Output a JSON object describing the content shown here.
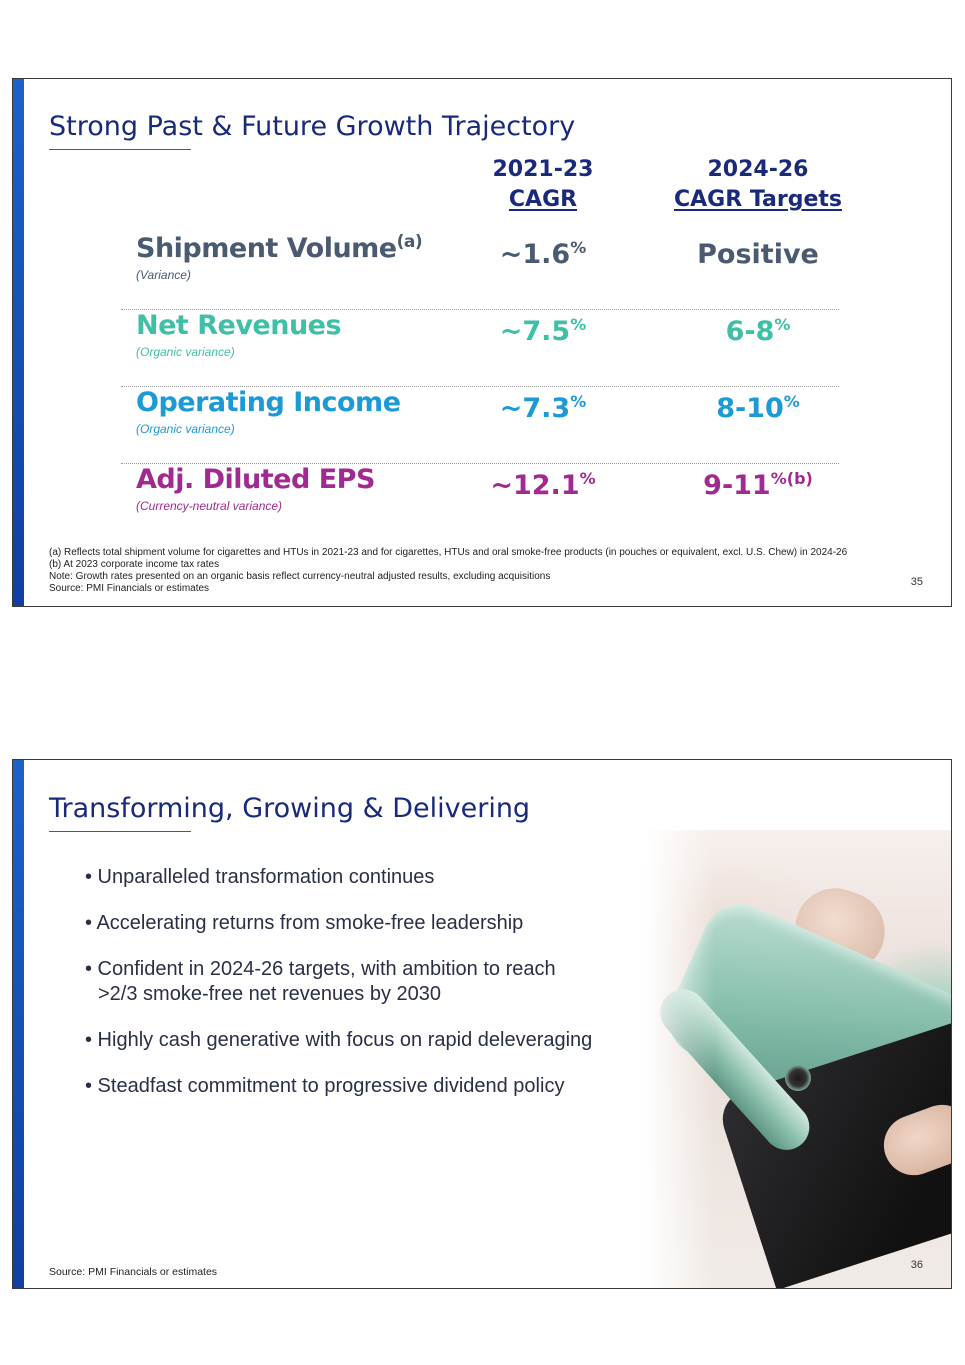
{
  "slide1": {
    "title": "Strong Past & Future Growth Trajectory",
    "col1": {
      "line1": "2021-23",
      "line2": "CAGR"
    },
    "col2": {
      "line1": "2024-26",
      "line2": "CAGR Targets"
    },
    "rows": [
      {
        "name": "Shipment Volume",
        "sup": "(a)",
        "sub": "(Variance)",
        "v1": "~1.6",
        "v1_sup": "%",
        "v2": "Positive",
        "v2_sup": "",
        "color": "#4a5a70"
      },
      {
        "name": "Net Revenues",
        "sup": "",
        "sub": "(Organic variance)",
        "v1": "~7.5",
        "v1_sup": "%",
        "v2": "6-8",
        "v2_sup": "%",
        "color": "#3ebfa6"
      },
      {
        "name": "Operating Income",
        "sup": "",
        "sub": "(Organic variance)",
        "v1": "~7.3",
        "v1_sup": "%",
        "v2": "8-10",
        "v2_sup": "%",
        "color": "#1c9ad6"
      },
      {
        "name": "Adj. Diluted EPS",
        "sup": "",
        "sub": "(Currency-neutral variance)",
        "v1": "~12.1",
        "v1_sup": "%",
        "v2": "9-11",
        "v2_sup": "%(b)",
        "color": "#a02a92"
      }
    ],
    "footnotes": [
      "(a) Reflects total shipment volume for cigarettes and HTUs in 2021-23 and for cigarettes, HTUs and oral smoke-free products (in pouches or equivalent, excl. U.S. Chew) in 2024-26",
      "(b) At 2023 corporate income tax rates",
      "Note: Growth rates presented on an organic basis reflect currency-neutral adjusted results, excluding acquisitions",
      "Source: PMI Financials or estimates"
    ],
    "page_number": "35"
  },
  "slide2": {
    "title": "Transforming, Growing & Delivering",
    "bullets": [
      "• Unparalleled transformation continues",
      "• Accelerating returns from smoke-free leadership",
      "• Confident in 2024-26 targets, with ambition to reach\n>2/3 smoke-free net revenues by 2030",
      "• Highly cash generative with focus on rapid deleveraging",
      "• Steadfast commitment to progressive dividend policy"
    ],
    "source": "Source: PMI Financials or estimates",
    "page_number": "36",
    "image": "hand-holding-device-photo"
  },
  "colors": {
    "accent_blue": "#1a2a7a",
    "side_bar": "#1b62c9"
  }
}
